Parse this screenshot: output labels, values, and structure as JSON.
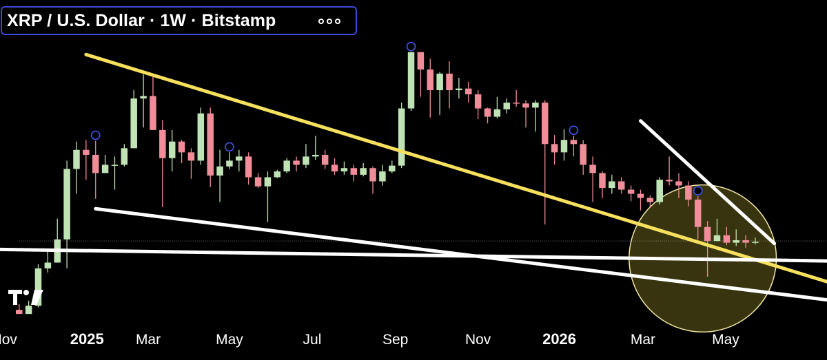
{
  "header": {
    "title": "XRP / U.S. Dollar · 1W · Bitstamp",
    "more_icon": "more-options-icon"
  },
  "colors": {
    "up": "#bfe3b4",
    "down": "#f08d99",
    "yellow_line": "#f6e05e",
    "white_line": "#ffffff",
    "circle_fill": "#3b3710",
    "circle_stroke": "#f2e7a8",
    "marker": "#3d4fd6",
    "title_border": "#3b4bd6"
  },
  "chart_data": {
    "type": "candlestick",
    "interval": "1W",
    "symbol": "XRP / U.S. Dollar",
    "exchange": "Bitstamp",
    "x_tick_labels": [
      "Nov",
      "2025",
      "Mar",
      "May",
      "Jul",
      "Sep",
      "Nov",
      "2026",
      "Mar",
      "May"
    ],
    "bold_tick_labels": [
      "2025",
      "2026"
    ],
    "y_axis_visible": false,
    "grid": false,
    "candles": [
      [
        0.55,
        0.5,
        0.62,
        0.5
      ],
      [
        0.5,
        0.6,
        0.66,
        0.5
      ],
      [
        0.6,
        1.05,
        1.1,
        0.58
      ],
      [
        1.05,
        1.12,
        1.27,
        1.0
      ],
      [
        1.12,
        1.4,
        1.65,
        1.4
      ],
      [
        1.4,
        2.25,
        2.35,
        1.05
      ],
      [
        2.25,
        2.48,
        2.58,
        1.95
      ],
      [
        2.48,
        2.42,
        2.6,
        2.12
      ],
      [
        2.42,
        2.2,
        2.59,
        1.89
      ],
      [
        2.2,
        2.3,
        2.42,
        2.2
      ],
      [
        2.3,
        2.3,
        2.4,
        2.0
      ],
      [
        2.3,
        2.5,
        2.55,
        2.28
      ],
      [
        2.5,
        3.1,
        3.2,
        2.5
      ],
      [
        3.1,
        3.13,
        3.39,
        2.75
      ],
      [
        3.13,
        2.72,
        3.4,
        2.72
      ],
      [
        2.72,
        2.38,
        2.84,
        1.79
      ],
      [
        2.38,
        2.58,
        2.72,
        2.22
      ],
      [
        2.58,
        2.45,
        2.6,
        2.32
      ],
      [
        2.45,
        2.35,
        2.5,
        2.13
      ],
      [
        2.35,
        2.92,
        2.99,
        2.3
      ],
      [
        2.92,
        2.17,
        2.99,
        2.03
      ],
      [
        2.17,
        2.28,
        2.48,
        1.85
      ],
      [
        2.28,
        2.35,
        2.45,
        2.25
      ],
      [
        2.35,
        2.4,
        2.48,
        2.22
      ],
      [
        2.4,
        2.15,
        2.45,
        2.06
      ],
      [
        2.15,
        2.04,
        2.2,
        2.02
      ],
      [
        2.04,
        2.15,
        2.22,
        1.61
      ],
      [
        2.15,
        2.22,
        2.24,
        2.14
      ],
      [
        2.22,
        2.35,
        2.38,
        2.2
      ],
      [
        2.35,
        2.3,
        2.4,
        2.22
      ],
      [
        2.3,
        2.4,
        2.55,
        2.26
      ],
      [
        2.4,
        2.42,
        2.65,
        2.36
      ],
      [
        2.42,
        2.3,
        2.48,
        2.25
      ],
      [
        2.3,
        2.22,
        2.38,
        2.18
      ],
      [
        2.22,
        2.26,
        2.34,
        2.18
      ],
      [
        2.26,
        2.18,
        2.3,
        2.1
      ],
      [
        2.18,
        2.26,
        2.32,
        2.16
      ],
      [
        2.26,
        2.1,
        2.28,
        1.95
      ],
      [
        2.1,
        2.22,
        2.3,
        2.05
      ],
      [
        2.22,
        2.29,
        2.35,
        2.2
      ],
      [
        2.29,
        2.98,
        3.05,
        2.26
      ],
      [
        2.98,
        3.66,
        3.66,
        2.95
      ],
      [
        3.66,
        3.45,
        3.66,
        3.12
      ],
      [
        3.45,
        3.2,
        3.58,
        2.87
      ],
      [
        3.2,
        3.4,
        3.42,
        2.9
      ],
      [
        3.4,
        3.2,
        3.55,
        2.98
      ],
      [
        3.2,
        3.22,
        3.35,
        3.1
      ],
      [
        3.22,
        3.15,
        3.3,
        3.05
      ],
      [
        3.15,
        2.98,
        3.2,
        2.85
      ],
      [
        2.98,
        2.88,
        2.99,
        2.8
      ],
      [
        2.88,
        2.97,
        3.12,
        2.86
      ],
      [
        2.97,
        3.05,
        3.1,
        2.92
      ],
      [
        3.05,
        3.04,
        3.2,
        3.0
      ],
      [
        3.04,
        2.99,
        3.08,
        2.75
      ],
      [
        2.99,
        3.05,
        3.08,
        2.7
      ],
      [
        3.05,
        2.55,
        3.08,
        1.58
      ],
      [
        2.55,
        2.45,
        2.66,
        2.3
      ],
      [
        2.45,
        2.6,
        2.73,
        2.35
      ],
      [
        2.6,
        2.55,
        2.65,
        2.4
      ],
      [
        2.55,
        2.3,
        2.6,
        2.18
      ],
      [
        2.3,
        2.2,
        2.4,
        1.85
      ],
      [
        2.2,
        2.02,
        2.22,
        1.9
      ],
      [
        2.02,
        2.1,
        2.18,
        1.95
      ],
      [
        2.1,
        2.0,
        2.15,
        1.95
      ],
      [
        2.0,
        1.95,
        2.05,
        1.86
      ],
      [
        1.95,
        1.9,
        2.0,
        1.75
      ],
      [
        1.9,
        1.85,
        1.93,
        1.78
      ],
      [
        1.85,
        2.12,
        2.15,
        1.82
      ],
      [
        2.12,
        2.1,
        2.4,
        2.05
      ],
      [
        2.1,
        2.05,
        2.2,
        1.9
      ],
      [
        2.05,
        1.88,
        2.1,
        1.8
      ],
      [
        1.88,
        1.55,
        1.92,
        1.4
      ],
      [
        1.55,
        1.38,
        1.62,
        0.95
      ],
      [
        1.38,
        1.45,
        1.65,
        1.38
      ],
      [
        1.45,
        1.36,
        1.55,
        1.33
      ],
      [
        1.36,
        1.39,
        1.52,
        1.32
      ],
      [
        1.39,
        1.36,
        1.45,
        1.3
      ],
      [
        1.36,
        1.37,
        1.42,
        1.34
      ]
    ],
    "dividend_markers": [
      8,
      22,
      41,
      58,
      71
    ],
    "trendlines": [
      {
        "color": "yellow",
        "from": [
          7.0,
          3.63
        ],
        "to": [
          84.5,
          0.89
        ]
      },
      {
        "color": "white",
        "from": [
          65.0,
          2.83
        ],
        "to": [
          79.0,
          1.35
        ]
      },
      {
        "color": "white",
        "from": [
          -3.0,
          1.28
        ],
        "to": [
          84.5,
          1.14
        ]
      },
      {
        "color": "white",
        "from": [
          8.0,
          1.77
        ],
        "to": [
          84.5,
          0.67
        ]
      }
    ],
    "highlight_circle": {
      "center": [
        71.5,
        1.17
      ],
      "radius_weeks": 7.7
    },
    "last_price_line": 1.38,
    "x_min": -2.0,
    "x_max": 84.5,
    "y_min": 0.36,
    "y_max": 3.79
  }
}
